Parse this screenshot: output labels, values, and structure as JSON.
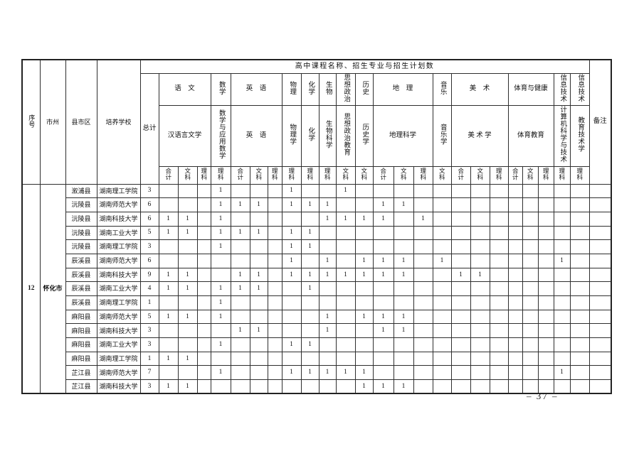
{
  "page": {
    "number": "– 37 –"
  },
  "table": {
    "span_header": "高中课程名称、招生专业与招生计划数",
    "corner_headers": [
      "序号",
      "市州",
      "县市区",
      "培养学校"
    ],
    "total_header": "总计",
    "remark_header": "备注",
    "groups": [
      {
        "subject": "语　文",
        "subject_vertical": false,
        "major": "汉语言文学",
        "major_vertical": false,
        "cats": [
          "合计",
          "文科",
          "理科"
        ]
      },
      {
        "subject": "数学",
        "subject_vertical": true,
        "major": "数学与应用数学",
        "major_vertical": true,
        "cats": [
          "理科"
        ]
      },
      {
        "subject": "英　语",
        "subject_vertical": false,
        "major": "英　语",
        "major_vertical": false,
        "cats": [
          "合计",
          "文科",
          "理科"
        ]
      },
      {
        "subject": "物理",
        "subject_vertical": true,
        "major": "物理学",
        "major_vertical": true,
        "cats": [
          "理科"
        ]
      },
      {
        "subject": "化学",
        "subject_vertical": true,
        "major": "化学",
        "major_vertical": true,
        "cats": [
          "理科"
        ]
      },
      {
        "subject": "生物",
        "subject_vertical": true,
        "major": "生物科学",
        "major_vertical": true,
        "cats": [
          "理科"
        ]
      },
      {
        "subject": "思想政治",
        "subject_vertical": true,
        "major": "思想政治教育",
        "major_vertical": true,
        "cats": [
          "文科"
        ]
      },
      {
        "subject": "历史",
        "subject_vertical": true,
        "major": "历史学",
        "major_vertical": true,
        "cats": [
          "文科"
        ]
      },
      {
        "subject": "地　理",
        "subject_vertical": false,
        "major": "地理科学",
        "major_vertical": false,
        "cats": [
          "合计",
          "文科",
          "理科"
        ]
      },
      {
        "subject": "音乐",
        "subject_vertical": true,
        "major": "音乐学",
        "major_vertical": true,
        "cats": [
          "文科"
        ]
      },
      {
        "subject": "美　术",
        "subject_vertical": false,
        "major": "美 术 学",
        "major_vertical": false,
        "cats": [
          "合计",
          "文科",
          "理科"
        ]
      },
      {
        "subject": "体育与健康",
        "subject_vertical": false,
        "major": "体育教育",
        "major_vertical": false,
        "cats": [
          "合计",
          "文科",
          "理科"
        ]
      },
      {
        "subject": "信息技术",
        "subject_vertical": true,
        "major": "计算机科学与技术",
        "major_vertical": true,
        "cats": [
          "理科"
        ]
      },
      {
        "subject": "信息技术",
        "subject_vertical": true,
        "major": "教育技术学",
        "major_vertical": true,
        "cats": [
          "理科"
        ]
      }
    ],
    "group_row": {
      "serial": "12",
      "city": "怀化市"
    },
    "rows": [
      {
        "county": "溆浦县",
        "school": "湖南理工学院",
        "values": [
          "3",
          "",
          "",
          "",
          "1",
          "",
          "",
          "",
          "1",
          "",
          "",
          "1",
          "",
          "",
          "",
          "",
          "",
          "",
          "",
          "",
          "",
          "",
          "",
          "",
          "",
          ""
        ]
      },
      {
        "county": "沅陵县",
        "school": "湖南师范大学",
        "values": [
          "6",
          "",
          "",
          "",
          "1",
          "1",
          "1",
          "",
          "1",
          "1",
          "1",
          "",
          "",
          "1",
          "1",
          "",
          "",
          "",
          "",
          "",
          "",
          "",
          "",
          "",
          "",
          ""
        ]
      },
      {
        "county": "沅陵县",
        "school": "湖南科技大学",
        "values": [
          "6",
          "1",
          "1",
          "",
          "1",
          "",
          "",
          "",
          "",
          "",
          "1",
          "1",
          "1",
          "1",
          "",
          "1",
          "",
          "",
          "",
          "",
          "",
          "",
          "",
          "",
          "",
          ""
        ]
      },
      {
        "county": "沅陵县",
        "school": "湖南工业大学",
        "values": [
          "5",
          "1",
          "1",
          "",
          "1",
          "1",
          "1",
          "",
          "1",
          "1",
          "",
          "",
          "",
          "",
          "",
          "",
          "",
          "",
          "",
          "",
          "",
          "",
          "",
          "",
          "",
          ""
        ]
      },
      {
        "county": "沅陵县",
        "school": "湖南理工学院",
        "values": [
          "3",
          "",
          "",
          "",
          "1",
          "",
          "",
          "",
          "1",
          "1",
          "",
          "",
          "",
          "",
          "",
          "",
          "",
          "",
          "",
          "",
          "",
          "",
          "",
          "",
          "",
          ""
        ]
      },
      {
        "county": "辰溪县",
        "school": "湖南师范大学",
        "values": [
          "6",
          "",
          "",
          "",
          "",
          "",
          "",
          "",
          "1",
          "",
          "1",
          "",
          "1",
          "1",
          "1",
          "",
          "1",
          "",
          "",
          "",
          "",
          "",
          "",
          "1",
          "",
          ""
        ]
      },
      {
        "county": "辰溪县",
        "school": "湖南科技大学",
        "values": [
          "9",
          "1",
          "1",
          "",
          "",
          "1",
          "1",
          "",
          "1",
          "1",
          "1",
          "1",
          "1",
          "1",
          "1",
          "",
          "",
          "1",
          "1",
          "",
          "",
          "",
          "",
          "",
          "",
          ""
        ]
      },
      {
        "county": "辰溪县",
        "school": "湖南工业大学",
        "values": [
          "4",
          "1",
          "1",
          "",
          "1",
          "1",
          "1",
          "",
          "",
          "1",
          "",
          "",
          "",
          "",
          "",
          "",
          "",
          "",
          "",
          "",
          "",
          "",
          "",
          "",
          "",
          ""
        ]
      },
      {
        "county": "辰溪县",
        "school": "湖南理工学院",
        "values": [
          "1",
          "",
          "",
          "",
          "1",
          "",
          "",
          "",
          "",
          "",
          "",
          "",
          "",
          "",
          "",
          "",
          "",
          "",
          "",
          "",
          "",
          "",
          "",
          "",
          "",
          ""
        ]
      },
      {
        "county": "麻阳县",
        "school": "湖南师范大学",
        "values": [
          "5",
          "1",
          "1",
          "",
          "1",
          "",
          "",
          "",
          "",
          "",
          "1",
          "",
          "1",
          "1",
          "1",
          "",
          "",
          "",
          "",
          "",
          "",
          "",
          "",
          "",
          "",
          ""
        ]
      },
      {
        "county": "麻阳县",
        "school": "湖南科技大学",
        "values": [
          "3",
          "",
          "",
          "",
          "",
          "1",
          "1",
          "",
          "",
          "",
          "1",
          "",
          "",
          "1",
          "1",
          "",
          "",
          "",
          "",
          "",
          "",
          "",
          "",
          "",
          "",
          ""
        ]
      },
      {
        "county": "麻阳县",
        "school": "湖南工业大学",
        "values": [
          "3",
          "",
          "",
          "",
          "1",
          "",
          "",
          "",
          "1",
          "1",
          "",
          "",
          "",
          "",
          "",
          "",
          "",
          "",
          "",
          "",
          "",
          "",
          "",
          "",
          "",
          ""
        ]
      },
      {
        "county": "麻阳县",
        "school": "湖南理工学院",
        "values": [
          "1",
          "1",
          "1",
          "",
          "",
          "",
          "",
          "",
          "",
          "",
          "",
          "",
          "",
          "",
          "",
          "",
          "",
          "",
          "",
          "",
          "",
          "",
          "",
          "",
          "",
          ""
        ]
      },
      {
        "county": "芷江县",
        "school": "湖南师范大学",
        "values": [
          "7",
          "",
          "",
          "",
          "1",
          "",
          "",
          "",
          "1",
          "1",
          "1",
          "1",
          "1",
          "",
          "",
          "",
          "",
          "",
          "",
          "",
          "",
          "",
          "",
          "1",
          "",
          ""
        ]
      },
      {
        "county": "芷江县",
        "school": "湖南科技大学",
        "values": [
          "3",
          "1",
          "1",
          "",
          "",
          "",
          "",
          "",
          "",
          "",
          "",
          "",
          "1",
          "1",
          "1",
          "",
          "",
          "",
          "",
          "",
          "",
          "",
          "",
          "",
          "",
          ""
        ]
      }
    ]
  }
}
